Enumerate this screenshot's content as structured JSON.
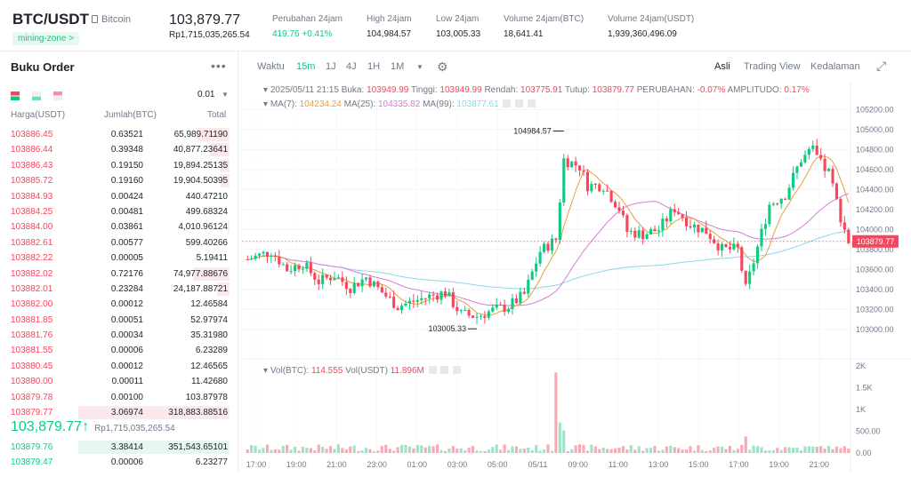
{
  "header": {
    "symbol": "BTC/USDT",
    "coin_name": "Bitcoin",
    "tag": "mining-zone >",
    "last_price": "103,879.77",
    "last_price_rp": "Rp1,715,035,265.54",
    "stats": [
      {
        "label": "Perubahan 24jam",
        "value": "419.76 +0.41%",
        "green": true
      },
      {
        "label": "High 24jam",
        "value": "104,984.57"
      },
      {
        "label": "Low 24jam",
        "value": "103,005.33"
      },
      {
        "label": "Volume 24jam(BTC)",
        "value": "18,641.41"
      },
      {
        "label": "Volume 24jam(USDT)",
        "value": "1,939,360,496.09"
      }
    ]
  },
  "orderbook": {
    "title": "Buku Order",
    "more": "•••",
    "precision": "0.01",
    "col_price": "Harga(USDT)",
    "col_amount": "Jumlah(BTC)",
    "col_total": "Total",
    "asks": [
      {
        "p": "103886.45",
        "a": "0.63521",
        "t": "65,989.71190",
        "d": 0.21
      },
      {
        "p": "103886.44",
        "a": "0.39348",
        "t": "40,877.23641",
        "d": 0.13
      },
      {
        "p": "103886.43",
        "a": "0.19150",
        "t": "19,894.25135",
        "d": 0.06
      },
      {
        "p": "103885.72",
        "a": "0.19160",
        "t": "19,904.50395",
        "d": 0.06
      },
      {
        "p": "103884.93",
        "a": "0.00424",
        "t": "440.47210",
        "d": 0.0
      },
      {
        "p": "103884.25",
        "a": "0.00481",
        "t": "499.68324",
        "d": 0.0
      },
      {
        "p": "103884.00",
        "a": "0.03861",
        "t": "4,010.96124",
        "d": 0.01
      },
      {
        "p": "103882.61",
        "a": "0.00577",
        "t": "599.40266",
        "d": 0.0
      },
      {
        "p": "103882.22",
        "a": "0.00005",
        "t": "5.19411",
        "d": 0.0
      },
      {
        "p": "103882.02",
        "a": "0.72176",
        "t": "74,977.88676",
        "d": 0.24
      },
      {
        "p": "103882.01",
        "a": "0.23284",
        "t": "24,187.88721",
        "d": 0.08
      },
      {
        "p": "103882.00",
        "a": "0.00012",
        "t": "12.46584",
        "d": 0.0
      },
      {
        "p": "103881.85",
        "a": "0.00051",
        "t": "52.97974",
        "d": 0.0
      },
      {
        "p": "103881.76",
        "a": "0.00034",
        "t": "35.31980",
        "d": 0.0
      },
      {
        "p": "103881.55",
        "a": "0.00006",
        "t": "6.23289",
        "d": 0.0
      },
      {
        "p": "103880.45",
        "a": "0.00012",
        "t": "12.46565",
        "d": 0.0
      },
      {
        "p": "103880.00",
        "a": "0.00011",
        "t": "11.42680",
        "d": 0.0
      },
      {
        "p": "103879.78",
        "a": "0.00100",
        "t": "103.87978",
        "d": 0.0
      },
      {
        "p": "103879.77",
        "a": "3.06974",
        "t": "318,883.88516",
        "d": 1.0
      }
    ],
    "mid_price": "103,879.77",
    "mid_arrow": "↑",
    "mid_rp": "Rp1,715,035,265.54",
    "bids": [
      {
        "p": "103879.76",
        "a": "3.38414",
        "t": "351,543.65101",
        "d": 1.0
      },
      {
        "p": "103879.47",
        "a": "0.00006",
        "t": "6.23277",
        "d": 0.0
      }
    ]
  },
  "toolbar": {
    "intervals": [
      "Waktu",
      "15m",
      "1J",
      "4J",
      "1H",
      "1M"
    ],
    "active": "15m",
    "views": [
      "Asli",
      "Trading View",
      "Kedalaman"
    ],
    "active_view": "Asli"
  },
  "chart_info": {
    "datetime": "2025/05/11 21:15",
    "open_label": "Buka:",
    "open": "103949.99",
    "high_label": "Tinggi:",
    "high": "103949.99",
    "low_label": "Rendah:",
    "low": "103775.91",
    "close_label": "Tutup:",
    "close": "103879.77",
    "change_label": "PERUBAHAN:",
    "change": "-0.07%",
    "amp_label": "AMPLITUDO:",
    "amp": "0.17%",
    "ma7_label": "MA(7):",
    "ma7": "104234.24",
    "ma25_label": "MA(25):",
    "ma25": "104335.82",
    "ma99_label": "MA(99):",
    "ma99": "103877.61",
    "vol_label": "Vol(BTC):",
    "vol_btc": "114.555",
    "vol_usdt_label": "Vol(USDT)",
    "vol_usdt": "11.896M"
  },
  "chart_data": {
    "type": "candlestick",
    "price_ticks": [
      "105200.00",
      "105000.00",
      "104800.00",
      "104600.00",
      "104400.00",
      "104200.00",
      "104000.00",
      "103800.00",
      "103600.00",
      "103400.00",
      "103200.00",
      "103000.00"
    ],
    "volume_ticks": [
      "2K",
      "1.5K",
      "1K",
      "500.00",
      "0.00"
    ],
    "time_ticks": [
      "17:00",
      "19:00",
      "21:00",
      "23:00",
      "01:00",
      "03:00",
      "05:00",
      "05/11",
      "09:00",
      "11:00",
      "13:00",
      "15:00",
      "17:00",
      "19:00",
      "21:00"
    ],
    "high_label": "104984.57",
    "low_label": "103005.33",
    "last_price_label": "103879.77",
    "colors": {
      "up": "#0ecb81",
      "down": "#f6465d",
      "ma7": "#e99e3e",
      "ma25": "#d67cd9",
      "ma99": "#8ad8e6"
    }
  }
}
